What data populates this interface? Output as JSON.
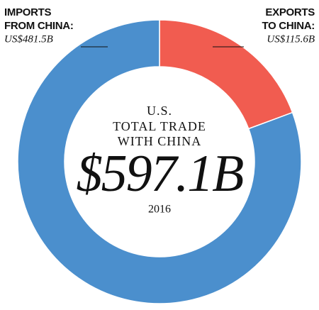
{
  "chart_data": {
    "type": "donut",
    "categories": [
      [
        "IMPORTS",
        "FROM CHINA:"
      ],
      [
        "EXPORTS",
        "TO CHINA:"
      ]
    ],
    "values": [
      481.5,
      115.6
    ],
    "value_labels": [
      "US$481.5B",
      "US$115.6B"
    ],
    "colors": [
      "#4b8fcd",
      "#f15c50"
    ],
    "center_title": [
      "U.S.",
      "TOTAL TRADE",
      "WITH CHINA"
    ],
    "center_value": "$597.1B",
    "center_year": "2016"
  }
}
